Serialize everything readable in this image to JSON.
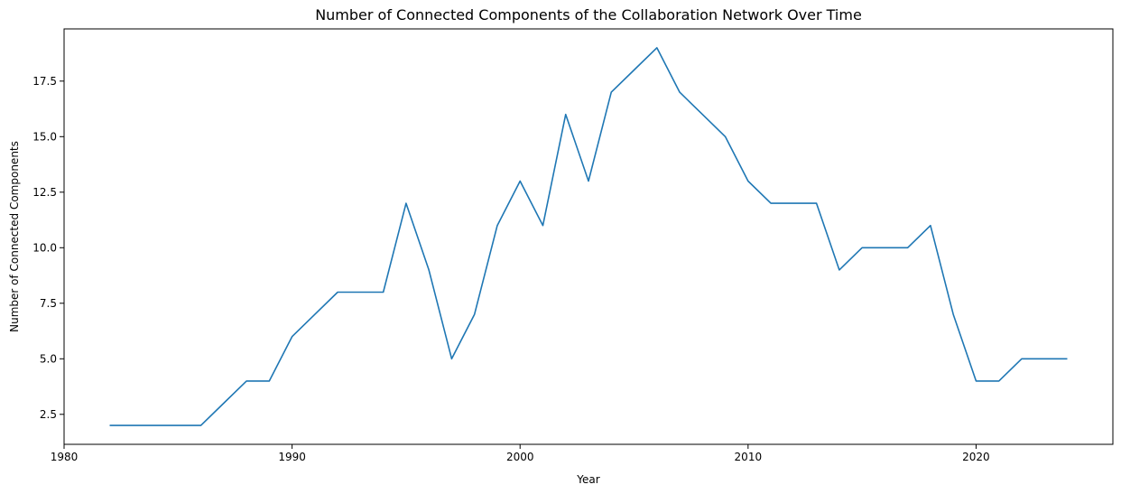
{
  "chart_data": {
    "type": "line",
    "title": "Number of Connected Components of the Collaboration Network Over Time",
    "xlabel": "Year",
    "ylabel": "Number of Connected Components",
    "xlim": [
      1980,
      2026
    ],
    "ylim": [
      1.15,
      19.85
    ],
    "xticks": [
      1980,
      1990,
      2000,
      2010,
      2020
    ],
    "xtick_labels": [
      "1980",
      "1990",
      "2000",
      "2010",
      "2020"
    ],
    "yticks": [
      2.5,
      5.0,
      7.5,
      10.0,
      12.5,
      15.0,
      17.5
    ],
    "ytick_labels": [
      "2.5",
      "5.0",
      "7.5",
      "10.0",
      "12.5",
      "15.0",
      "17.5"
    ],
    "grid": false,
    "legend": "none",
    "color": "#1f77b4",
    "x": [
      1982,
      1983,
      1984,
      1985,
      1986,
      1987,
      1988,
      1989,
      1990,
      1991,
      1992,
      1993,
      1994,
      1995,
      1996,
      1997,
      1998,
      1999,
      2000,
      2001,
      2002,
      2003,
      2004,
      2005,
      2006,
      2007,
      2008,
      2009,
      2010,
      2011,
      2012,
      2013,
      2014,
      2015,
      2016,
      2017,
      2018,
      2019,
      2020,
      2021,
      2022,
      2023,
      2024
    ],
    "series": [
      {
        "values": [
          2,
          2,
          2,
          2,
          2,
          3,
          4,
          4,
          6,
          7,
          8,
          8,
          8,
          12,
          9,
          5,
          7,
          11,
          13,
          11,
          16,
          13,
          17,
          18,
          19,
          17,
          16,
          15,
          13,
          12,
          12,
          12,
          9,
          10,
          10,
          10,
          11,
          7,
          4,
          4,
          5,
          5,
          5
        ]
      }
    ]
  }
}
